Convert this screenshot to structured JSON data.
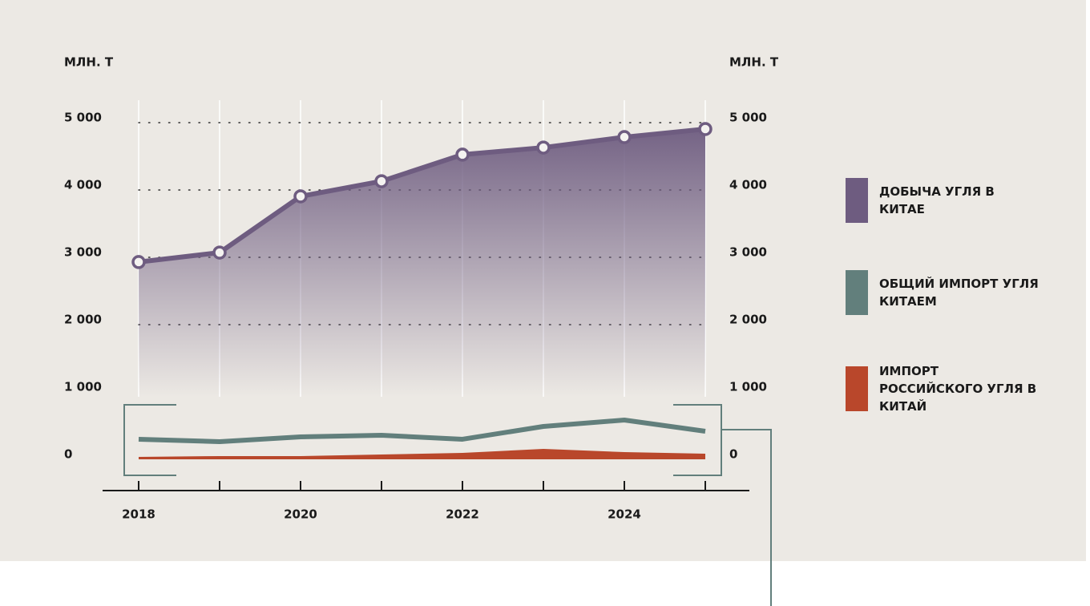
{
  "chart_data": {
    "type": "line",
    "ylabel": "МЛН. Т",
    "y2label": "МЛН. Т",
    "categories": [
      "2018",
      null,
      "2020",
      null,
      "2022",
      null,
      "2024",
      null
    ],
    "series": [
      {
        "name": "ДОБЫЧА УГЛЯ В КИТАЕ",
        "color": "#6e5c80",
        "values": [
          2930,
          3070,
          3905,
          4130,
          4525,
          4630,
          4785,
          4905
        ]
      },
      {
        "name": "ОБЩИЙ ИМПОРТ УГЛЯ КИТАЕМ",
        "color": "#627f7c",
        "values": [
          298,
          262,
          333,
          357,
          298,
          488,
          583,
          417
        ]
      },
      {
        "name": "ИМПОРТ РОССИЙСКОГО УГЛЯ В КИТАЙ",
        "color": "#b9472b",
        "values": [
          36,
          48,
          48,
          71,
          95,
          155,
          107,
          83
        ]
      }
    ],
    "ylim": [
      0,
      5000
    ],
    "yticks": [
      0,
      {
        "value": 1000,
        "label": "1 000"
      },
      {
        "value": 2000,
        "label": "2 000"
      },
      {
        "value": 3000,
        "label": "3 000"
      },
      {
        "value": 4000,
        "label": "4 000"
      },
      {
        "value": 5000,
        "label": "5 000"
      }
    ],
    "grid": true
  }
}
